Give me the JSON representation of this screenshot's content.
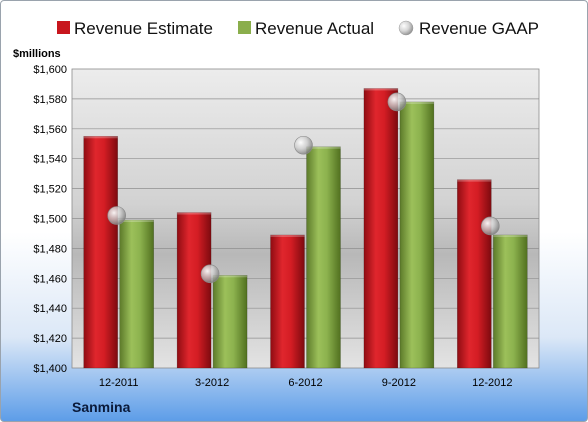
{
  "company": "Sanmina",
  "chart_data": {
    "type": "bar",
    "ylabel": "$millions",
    "categories": [
      "12-2011",
      "3-2012",
      "6-2012",
      "9-2012",
      "12-2012"
    ],
    "series": [
      {
        "name": "Revenue Estimate",
        "kind": "bar",
        "color": "#c8161d",
        "values": [
          1555,
          1504,
          1489,
          1587,
          1526
        ]
      },
      {
        "name": "Revenue Actual",
        "kind": "bar",
        "color": "#8aae4c",
        "values": [
          1499,
          1462,
          1548,
          1578,
          1489
        ]
      },
      {
        "name": "Revenue GAAP",
        "kind": "point",
        "color": "#bfbfbf",
        "values": [
          1502,
          1463,
          1549,
          1578,
          1495
        ]
      }
    ],
    "ylim": [
      1400,
      1600
    ],
    "yticks": [
      1400,
      1420,
      1440,
      1460,
      1480,
      1500,
      1520,
      1540,
      1560,
      1580,
      1600
    ],
    "ytick_labels": [
      "$1,400",
      "$1,420",
      "$1,440",
      "$1,460",
      "$1,480",
      "$1,500",
      "$1,520",
      "$1,540",
      "$1,560",
      "$1,580",
      "$1,600"
    ],
    "grid": true,
    "legend": "top"
  }
}
